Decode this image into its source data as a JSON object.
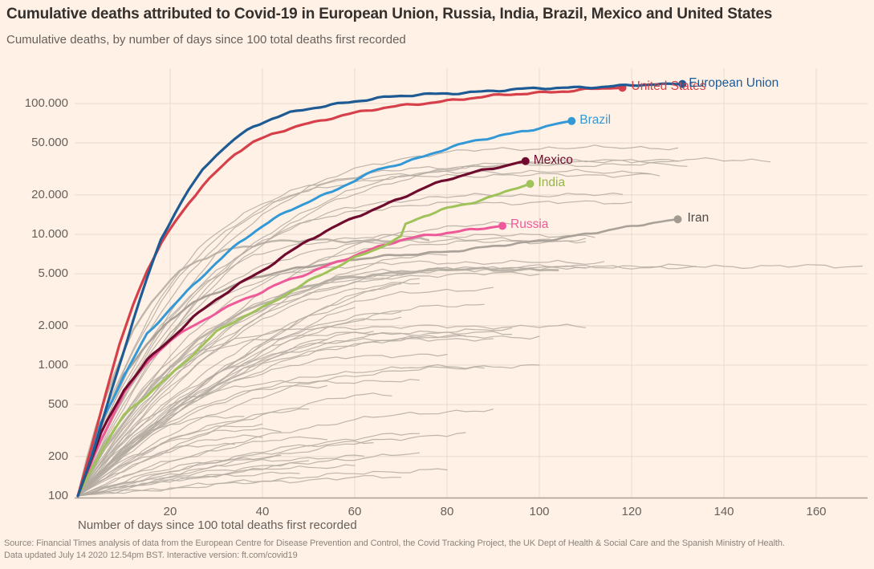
{
  "header": {
    "title": "Cumulative deaths attributed to Covid-19 in European Union, Russia, India, Brazil, Mexico and United States",
    "subtitle": "Cumulative deaths, by number of days since 100 total deaths first recorded"
  },
  "footer": {
    "source_line1": "Source: Financial Times analysis of data from the European Centre for Disease Prevention and Control, the Covid Tracking Project, the UK Dept of Health & Social Care and the Spanish Ministry of Health.",
    "source_line2": "Data updated July 14 2020 12.54pm BST. Interactive version: ft.com/covid19"
  },
  "colors": {
    "page_background": "#FFF1E5",
    "title_text": "#33302e",
    "muted_text": "#66605c",
    "source_text": "#8b847b",
    "grid_line": "#e8dacb",
    "axis_line": "#a79d92",
    "background_line": "#b3aaa1"
  },
  "chart_data": {
    "type": "line",
    "title": "Cumulative deaths attributed to Covid-19 in European Union, Russia, India, Brazil, Mexico and United States",
    "subtitle": "Cumulative deaths, by number of days since 100 total deaths first recorded",
    "x_axis": {
      "label": "Number of days since 100 total deaths first recorded",
      "ticks": [
        20,
        40,
        60,
        80,
        100,
        120,
        140,
        160
      ],
      "range": [
        0,
        171
      ]
    },
    "y_axis": {
      "scale": "log",
      "range": [
        100,
        200000
      ],
      "grid": true,
      "ticks": [
        {
          "value": 100,
          "label": "100"
        },
        {
          "value": 200,
          "label": "200"
        },
        {
          "value": 500,
          "label": "500"
        },
        {
          "value": 1000,
          "label": "1.000"
        },
        {
          "value": 2000,
          "label": "2.000"
        },
        {
          "value": 5000,
          "label": "5.000"
        },
        {
          "value": 10000,
          "label": "10.000"
        },
        {
          "value": 20000,
          "label": "20.000"
        },
        {
          "value": 50000,
          "label": "50.000"
        },
        {
          "value": 100000,
          "label": "100.000"
        }
      ]
    },
    "series": [
      {
        "name": "Iran",
        "color": "#aaa198",
        "label_color": "#4f4a46",
        "dot_color": "#a39a91",
        "width": 2.6,
        "label_dx": 12,
        "points": [
          [
            0,
            100
          ],
          [
            5,
            340
          ],
          [
            10,
            850
          ],
          [
            15,
            1430
          ],
          [
            20,
            2230
          ],
          [
            25,
            3040
          ],
          [
            30,
            3600
          ],
          [
            35,
            4230
          ],
          [
            40,
            4780
          ],
          [
            45,
            5300
          ],
          [
            50,
            5710
          ],
          [
            55,
            6100
          ],
          [
            60,
            6420
          ],
          [
            65,
            6700
          ],
          [
            70,
            6900
          ],
          [
            75,
            7180
          ],
          [
            80,
            7420
          ],
          [
            85,
            7730
          ],
          [
            90,
            8070
          ],
          [
            95,
            8430
          ],
          [
            100,
            8840
          ],
          [
            105,
            9450
          ],
          [
            110,
            10130
          ],
          [
            115,
            10740
          ],
          [
            120,
            11410
          ],
          [
            125,
            12250
          ],
          [
            130,
            13030
          ]
        ]
      },
      {
        "name": "Russia",
        "color": "#ee5a99",
        "label_color": "#ee5a99",
        "dot_color": "#ee5a99",
        "width": 3,
        "label_dx": 10,
        "points": [
          [
            0,
            100
          ],
          [
            5,
            270
          ],
          [
            10,
            620
          ],
          [
            15,
            1040
          ],
          [
            20,
            1540
          ],
          [
            25,
            2000
          ],
          [
            30,
            2540
          ],
          [
            35,
            3100
          ],
          [
            40,
            3630
          ],
          [
            45,
            4370
          ],
          [
            50,
            5040
          ],
          [
            55,
            5970
          ],
          [
            60,
            6950
          ],
          [
            65,
            7970
          ],
          [
            70,
            8970
          ],
          [
            75,
            9700
          ],
          [
            80,
            10300
          ],
          [
            85,
            10900
          ],
          [
            88,
            11200
          ],
          [
            92,
            11600
          ]
        ]
      },
      {
        "name": "India",
        "color": "#a0c25b",
        "label_color": "#96b54a",
        "dot_color": "#a0c25b",
        "width": 3,
        "label_dx": 10,
        "points": [
          [
            0,
            100
          ],
          [
            5,
            220
          ],
          [
            10,
            420
          ],
          [
            15,
            590
          ],
          [
            20,
            830
          ],
          [
            25,
            1200
          ],
          [
            30,
            1800
          ],
          [
            35,
            2300
          ],
          [
            40,
            2760
          ],
          [
            45,
            3440
          ],
          [
            50,
            4340
          ],
          [
            55,
            5400
          ],
          [
            60,
            6650
          ],
          [
            65,
            7900
          ],
          [
            70,
            9520
          ],
          [
            71,
            11900
          ],
          [
            75,
            13700
          ],
          [
            80,
            15700
          ],
          [
            85,
            17400
          ],
          [
            90,
            19700
          ],
          [
            94,
            22100
          ],
          [
            98,
            24300
          ]
        ]
      },
      {
        "name": "Mexico",
        "color": "#6e0b2e",
        "label_color": "#6e0b2e",
        "dot_color": "#6e0b2e",
        "width": 3.2,
        "label_dx": 10,
        "points": [
          [
            0,
            100
          ],
          [
            5,
            300
          ],
          [
            10,
            650
          ],
          [
            15,
            1100
          ],
          [
            20,
            1570
          ],
          [
            25,
            2300
          ],
          [
            30,
            3160
          ],
          [
            35,
            4200
          ],
          [
            40,
            5330
          ],
          [
            45,
            7000
          ],
          [
            50,
            9000
          ],
          [
            55,
            11000
          ],
          [
            60,
            13500
          ],
          [
            65,
            16000
          ],
          [
            70,
            19100
          ],
          [
            75,
            22600
          ],
          [
            80,
            26000
          ],
          [
            85,
            29200
          ],
          [
            90,
            32000
          ],
          [
            94,
            34700
          ],
          [
            97,
            36300
          ]
        ]
      },
      {
        "name": "Brazil",
        "color": "#3399d6",
        "label_color": "#3399d6",
        "dot_color": "#3399d6",
        "width": 3,
        "label_dx": 10,
        "points": [
          [
            0,
            100
          ],
          [
            5,
            360
          ],
          [
            10,
            820
          ],
          [
            15,
            1750
          ],
          [
            20,
            2700
          ],
          [
            25,
            4100
          ],
          [
            30,
            6000
          ],
          [
            35,
            8600
          ],
          [
            40,
            11600
          ],
          [
            45,
            14900
          ],
          [
            50,
            17900
          ],
          [
            55,
            21000
          ],
          [
            60,
            25600
          ],
          [
            65,
            31300
          ],
          [
            70,
            35000
          ],
          [
            75,
            39700
          ],
          [
            80,
            45500
          ],
          [
            85,
            50600
          ],
          [
            90,
            55000
          ],
          [
            95,
            60000
          ],
          [
            100,
            65500
          ],
          [
            103,
            69200
          ],
          [
            107,
            73500
          ]
        ]
      },
      {
        "name": "United States",
        "color": "#d5404a",
        "label_color": "#d5404a",
        "dot_color": "#d5404a",
        "width": 3.2,
        "label_dx": 11,
        "points": [
          [
            0,
            100
          ],
          [
            3,
            240
          ],
          [
            6,
            600
          ],
          [
            9,
            1400
          ],
          [
            12,
            2900
          ],
          [
            15,
            5300
          ],
          [
            18,
            8400
          ],
          [
            21,
            12500
          ],
          [
            24,
            17500
          ],
          [
            27,
            23500
          ],
          [
            30,
            30000
          ],
          [
            34,
            41000
          ],
          [
            38,
            50000
          ],
          [
            42,
            58000
          ],
          [
            46,
            65000
          ],
          [
            50,
            71000
          ],
          [
            55,
            78000
          ],
          [
            60,
            84500
          ],
          [
            65,
            90500
          ],
          [
            70,
            96000
          ],
          [
            75,
            101000
          ],
          [
            80,
            105500
          ],
          [
            85,
            110000
          ],
          [
            90,
            114000
          ],
          [
            95,
            117500
          ],
          [
            100,
            121000
          ],
          [
            105,
            125000
          ],
          [
            110,
            128500
          ],
          [
            114,
            130500
          ],
          [
            118,
            132000
          ]
        ]
      },
      {
        "name": "European Union",
        "color": "#1e5a93",
        "label_color": "#1e5a93",
        "dot_color": "#1e5a93",
        "width": 3.2,
        "label_dx": 8,
        "points": [
          [
            0,
            100
          ],
          [
            3,
            200
          ],
          [
            6,
            450
          ],
          [
            9,
            1000
          ],
          [
            12,
            2200
          ],
          [
            15,
            4600
          ],
          [
            18,
            9000
          ],
          [
            21,
            14500
          ],
          [
            24,
            22000
          ],
          [
            27,
            31000
          ],
          [
            30,
            41000
          ],
          [
            34,
            54000
          ],
          [
            38,
            66000
          ],
          [
            42,
            76000
          ],
          [
            46,
            84500
          ],
          [
            50,
            91500
          ],
          [
            55,
            98500
          ],
          [
            60,
            104500
          ],
          [
            65,
            109500
          ],
          [
            70,
            113500
          ],
          [
            75,
            117000
          ],
          [
            80,
            120000
          ],
          [
            85,
            122500
          ],
          [
            90,
            125000
          ],
          [
            95,
            127500
          ],
          [
            100,
            130000
          ],
          [
            105,
            132000
          ],
          [
            110,
            134000
          ],
          [
            115,
            135500
          ],
          [
            120,
            137500
          ],
          [
            125,
            139000
          ],
          [
            131,
            141000
          ]
        ]
      }
    ],
    "background_series_day_value_shape_width": [
      [
        170,
        5700,
        7,
        1.2
      ],
      [
        150,
        37000,
        4.5,
        1.2
      ],
      [
        131,
        46000,
        4.5,
        1.2
      ],
      [
        130,
        36000,
        4,
        1.2
      ],
      [
        132,
        34000,
        5.5,
        1.2
      ],
      [
        127,
        28400,
        6,
        1.2
      ],
      [
        124,
        30000,
        6,
        1.2
      ],
      [
        135,
        5600,
        5,
        1.2
      ],
      [
        110,
        9100,
        5,
        1.2
      ],
      [
        112,
        9800,
        6,
        1.2
      ],
      [
        115,
        6100,
        6,
        1.2
      ],
      [
        110,
        5500,
        3.5,
        1.2
      ],
      [
        105,
        5400,
        4,
        2.8
      ],
      [
        110,
        8800,
        4,
        1.2
      ],
      [
        95,
        12000,
        2.5,
        1.2
      ],
      [
        80,
        7000,
        2,
        1.2
      ],
      [
        76,
        9000,
        6,
        2.4
      ],
      [
        120,
        17500,
        5,
        1.2
      ],
      [
        118,
        20000,
        4.5,
        1.2
      ],
      [
        100,
        5000,
        3.5,
        1.2
      ],
      [
        90,
        3800,
        2.5,
        1.2
      ],
      [
        88,
        2900,
        2.2,
        1.2
      ],
      [
        75,
        4500,
        1.6,
        1.2
      ],
      [
        70,
        4200,
        1.5,
        1.2
      ],
      [
        72,
        5300,
        2.2,
        1.2
      ],
      [
        70,
        2500,
        2,
        1.2
      ],
      [
        75,
        4200,
        2.3,
        1.2
      ],
      [
        110,
        1970,
        7,
        1.2
      ],
      [
        100,
        1650,
        4,
        1.2
      ],
      [
        95,
        1750,
        6,
        1.2
      ],
      [
        95,
        1850,
        3,
        1.2
      ],
      [
        90,
        1590,
        3,
        1.2
      ],
      [
        100,
        980,
        3.5,
        1.2
      ],
      [
        85,
        1650,
        2.5,
        1.2
      ],
      [
        70,
        2300,
        2,
        1.2
      ],
      [
        65,
        1800,
        1.8,
        1.2
      ],
      [
        60,
        2800,
        1.3,
        1.2
      ],
      [
        55,
        1600,
        1.5,
        1.2
      ],
      [
        88,
        950,
        2.5,
        1.2
      ],
      [
        80,
        1200,
        3,
        1.2
      ],
      [
        45,
        320,
        3,
        1.2
      ],
      [
        55,
        700,
        2.5,
        1.2
      ],
      [
        75,
        750,
        5,
        1.2
      ],
      [
        50,
        450,
        2,
        1.2
      ],
      [
        40,
        290,
        2,
        1.2
      ],
      [
        68,
        600,
        1.8,
        1.2
      ],
      [
        62,
        200,
        2,
        1.2
      ],
      [
        75,
        300,
        1.6,
        1.2
      ],
      [
        35,
        250,
        2.5,
        1.2
      ],
      [
        50,
        180,
        1.5,
        1.2
      ],
      [
        80,
        160,
        1.3,
        1.2
      ],
      [
        70,
        140,
        1.5,
        1.2
      ],
      [
        60,
        170,
        1.8,
        1.2
      ],
      [
        75,
        210,
        1.4,
        1.2
      ],
      [
        48,
        150,
        2,
        1.2
      ],
      [
        65,
        260,
        1.6,
        1.2
      ],
      [
        85,
        300,
        1.5,
        1.2
      ],
      [
        90,
        450,
        2,
        1.2
      ],
      [
        55,
        280,
        2,
        1.2
      ],
      [
        45,
        200,
        2,
        1.2
      ],
      [
        40,
        350,
        2.2,
        1.2
      ],
      [
        36,
        400,
        3,
        1.2
      ]
    ]
  }
}
